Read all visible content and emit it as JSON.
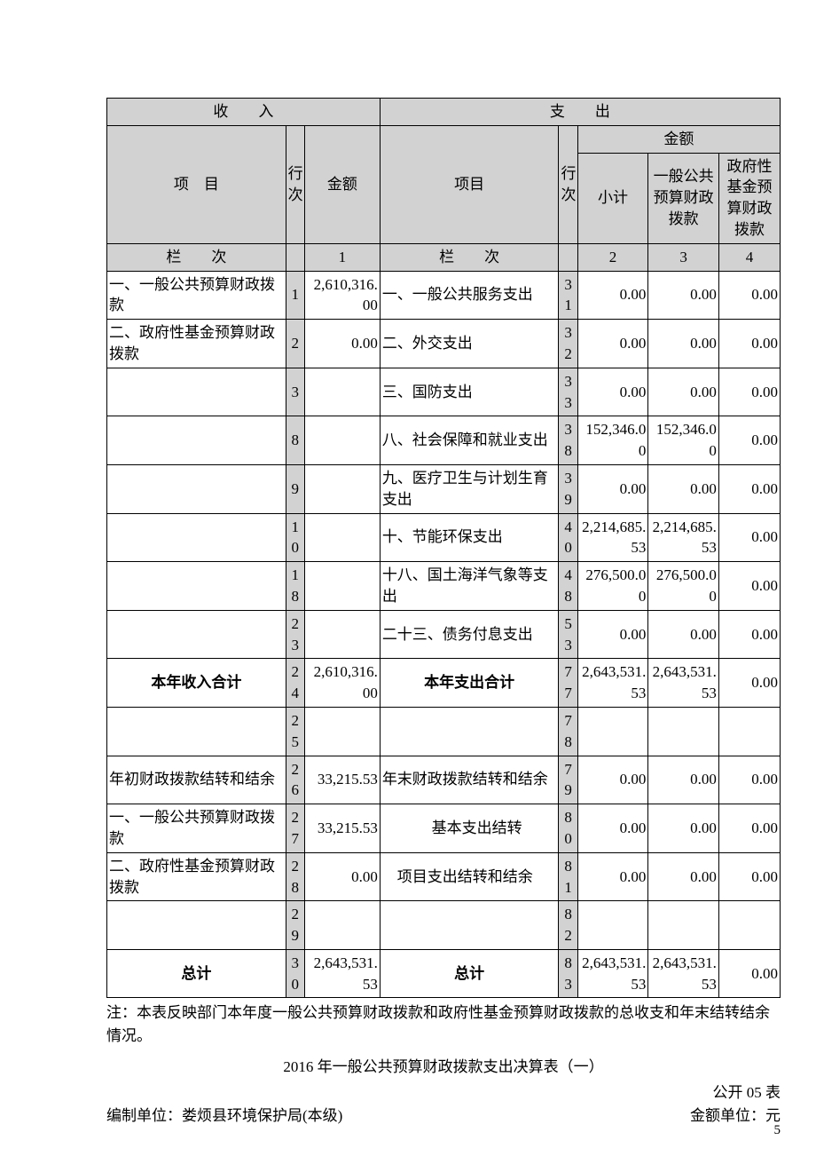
{
  "header": {
    "income_title": "收　　入",
    "expense_title": "支　　出",
    "item_label": "项　目",
    "row_no_label": "行次",
    "amount_label": "金额",
    "expense_item_label": "项目",
    "subtotal_label": "小计",
    "col3_label": "一般公共预算财政拨款",
    "col4_label": "政府性基金预算财政拨款",
    "colhdr_label": "栏　　次",
    "col_nums": [
      "1",
      "2",
      "3",
      "4"
    ]
  },
  "rows": [
    {
      "inc_item": "一、一般公共预算财政拨款",
      "inc_no": "1",
      "inc_amt": "2,610,316.00",
      "exp_item": "一、一般公共服务支出",
      "exp_no": "31",
      "c2": "0.00",
      "c3": "0.00",
      "c4": "0.00"
    },
    {
      "inc_item": "二、政府性基金预算财政拨款",
      "inc_no": "2",
      "inc_amt": "0.00",
      "exp_item": "二、外交支出",
      "exp_no": "32",
      "c2": "0.00",
      "c3": "0.00",
      "c4": "0.00"
    },
    {
      "inc_item": "",
      "inc_no": "3",
      "inc_amt": "",
      "exp_item": "三、国防支出",
      "exp_no": "33",
      "c2": "0.00",
      "c3": "0.00",
      "c4": "0.00"
    },
    {
      "inc_item": "",
      "inc_no": "8",
      "inc_amt": "",
      "exp_item": "八、社会保障和就业支出",
      "exp_no": "38",
      "c2": "152,346.00",
      "c3": "152,346.00",
      "c4": "0.00"
    },
    {
      "inc_item": "",
      "inc_no": "9",
      "inc_amt": "",
      "exp_item": "九、医疗卫生与计划生育支出",
      "exp_no": "39",
      "c2": "0.00",
      "c3": "0.00",
      "c4": "0.00"
    },
    {
      "inc_item": "",
      "inc_no": "10",
      "inc_amt": "",
      "exp_item": "十、节能环保支出",
      "exp_no": "40",
      "c2": "2,214,685.53",
      "c3": "2,214,685.53",
      "c4": "0.00"
    },
    {
      "inc_item": "",
      "inc_no": "18",
      "inc_amt": "",
      "exp_item": "十八、国土海洋气象等支出",
      "exp_no": "48",
      "c2": "276,500.00",
      "c3": "276,500.00",
      "c4": "0.00"
    },
    {
      "inc_item": "",
      "inc_no": "23",
      "inc_amt": "",
      "exp_item": "二十三、债务付息支出",
      "exp_no": "53",
      "c2": "0.00",
      "c3": "0.00",
      "c4": "0.00"
    },
    {
      "inc_item": "本年收入合计",
      "inc_no": "24",
      "inc_amt": "2,610,316.00",
      "inc_bold": true,
      "inc_center": true,
      "exp_item": "本年支出合计",
      "exp_bold": true,
      "exp_center": true,
      "exp_no": "77",
      "c2": "2,643,531.53",
      "c3": "2,643,531.53",
      "c4": "0.00"
    },
    {
      "inc_item": "",
      "inc_no": "25",
      "inc_amt": "",
      "exp_item": "",
      "exp_no": "78",
      "c2": "",
      "c3": "",
      "c4": ""
    },
    {
      "inc_item": "年初财政拨款结转和结余",
      "inc_no": "26",
      "inc_amt": "33,215.53",
      "exp_item": "年末财政拨款结转和结余",
      "exp_no": "79",
      "c2": "0.00",
      "c3": "0.00",
      "c4": "0.00"
    },
    {
      "inc_item": "一、一般公共预算财政拨款",
      "inc_no": "27",
      "inc_amt": "33,215.53",
      "exp_item": "　基本支出结转",
      "exp_center": true,
      "exp_no": "80",
      "c2": "0.00",
      "c3": "0.00",
      "c4": "0.00"
    },
    {
      "inc_item": "二、政府性基金预算财政拨款",
      "inc_no": "28",
      "inc_amt": "0.00",
      "exp_item": "　项目支出结转和结余",
      "exp_no": "81",
      "c2": "0.00",
      "c3": "0.00",
      "c4": "0.00"
    },
    {
      "inc_item": "",
      "inc_no": "29",
      "inc_amt": "",
      "exp_item": "",
      "exp_no": "82",
      "c2": "",
      "c3": "",
      "c4": ""
    },
    {
      "inc_item": "总计",
      "inc_no": "30",
      "inc_amt": "2,643,531.53",
      "inc_bold": true,
      "inc_center": true,
      "exp_item": "总计",
      "exp_bold": true,
      "exp_center": true,
      "exp_no": "83",
      "c2": "2,643,531.53",
      "c3": "2,643,531.53",
      "c4": "0.00"
    }
  ],
  "note": "注：本表反映部门本年度一般公共预算财政拨款和政府性基金预算财政拨款的总收支和年末结转结余情况。",
  "next": {
    "title": "2016 年一般公共预算财政拨款支出决算表（一）",
    "left": "编制单位：娄烦县环境保护局(本级)",
    "right1": "公开 05 表",
    "right2": "金额单位：元"
  },
  "page_number": "5",
  "style": {
    "header_bg": "#d2d2d2",
    "border_color": "#000000",
    "font_size_pt": 13
  }
}
